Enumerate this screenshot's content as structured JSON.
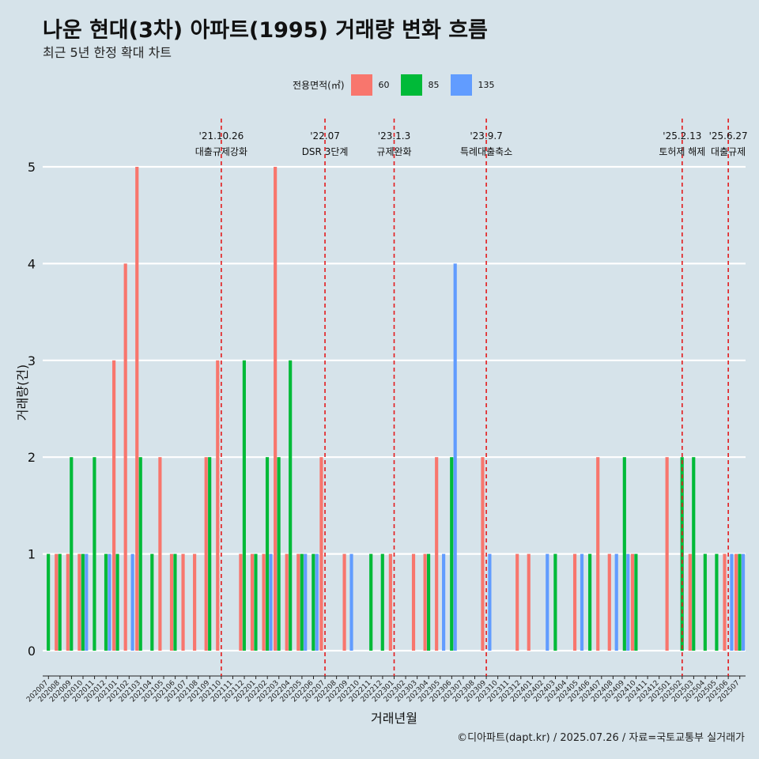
{
  "title": "나운 현대(3차) 아파트(1995) 거래량 변화 흐름",
  "subtitle": "최근 5년 한정 확대 차트",
  "caption": "©디아파트(dapt.kr) / 2025.07.26 / 자료=국토교통부 실거래가",
  "legend": {
    "title": "전용면적(㎡)",
    "items": [
      {
        "label": "60",
        "color": "#F8766D"
      },
      {
        "label": "85",
        "color": "#00BA38"
      },
      {
        "label": "135",
        "color": "#619CFF"
      }
    ]
  },
  "chart_data": {
    "type": "bar",
    "xlabel": "거래년월",
    "ylabel": "거래량(건)",
    "ylim": [
      0,
      5
    ],
    "yticks": [
      0,
      1,
      2,
      3,
      4,
      5
    ],
    "grid": true,
    "legend_position": "top",
    "categories": [
      "202007",
      "202008",
      "202009",
      "202010",
      "202011",
      "202012",
      "202101",
      "202102",
      "202103",
      "202104",
      "202105",
      "202106",
      "202107",
      "202108",
      "202109",
      "202110",
      "202111",
      "202112",
      "202201",
      "202202",
      "202203",
      "202204",
      "202205",
      "202206",
      "202207",
      "202208",
      "202209",
      "202210",
      "202211",
      "202212",
      "202301",
      "202302",
      "202303",
      "202304",
      "202305",
      "202306",
      "202307",
      "202308",
      "202309",
      "202310",
      "202311",
      "202312",
      "202401",
      "202402",
      "202403",
      "202404",
      "202405",
      "202406",
      "202407",
      "202408",
      "202409",
      "202410",
      "202411",
      "202412",
      "202501",
      "202502",
      "202503",
      "202504",
      "202505",
      "202506",
      "202507"
    ],
    "series": [
      {
        "name": "60",
        "color": "#F8766D",
        "values": [
          0,
          1,
          1,
          1,
          0,
          0,
          3,
          4,
          5,
          0,
          2,
          1,
          1,
          1,
          2,
          3,
          0,
          1,
          1,
          1,
          5,
          1,
          1,
          0,
          2,
          0,
          1,
          0,
          0,
          0,
          1,
          0,
          1,
          1,
          2,
          0,
          0,
          0,
          2,
          0,
          0,
          1,
          1,
          0,
          0,
          0,
          1,
          0,
          2,
          1,
          0,
          1,
          0,
          0,
          2,
          0,
          1,
          0,
          0,
          1,
          1
        ]
      },
      {
        "name": "85",
        "color": "#00BA38",
        "values": [
          1,
          1,
          2,
          1,
          2,
          1,
          1,
          0,
          2,
          1,
          0,
          1,
          0,
          0,
          2,
          0,
          0,
          3,
          1,
          2,
          2,
          3,
          1,
          1,
          0,
          0,
          0,
          0,
          1,
          1,
          0,
          0,
          0,
          1,
          0,
          2,
          0,
          0,
          0,
          0,
          0,
          0,
          0,
          0,
          1,
          0,
          0,
          1,
          0,
          0,
          2,
          1,
          0,
          0,
          0,
          2,
          2,
          1,
          1,
          0,
          1
        ]
      },
      {
        "name": "135",
        "color": "#619CFF",
        "values": [
          0,
          0,
          0,
          1,
          0,
          1,
          0,
          1,
          0,
          0,
          0,
          0,
          0,
          0,
          0,
          0,
          0,
          0,
          0,
          1,
          0,
          0,
          1,
          1,
          0,
          0,
          1,
          0,
          0,
          0,
          0,
          0,
          0,
          0,
          1,
          4,
          0,
          0,
          1,
          0,
          0,
          0,
          0,
          1,
          0,
          0,
          1,
          0,
          0,
          1,
          1,
          0,
          0,
          0,
          0,
          0,
          0,
          0,
          0,
          1,
          1
        ]
      }
    ],
    "annotations": [
      {
        "month": "202110",
        "date": "'21.10.26",
        "label": "대출규제강화"
      },
      {
        "month": "202207",
        "date": "'22.07",
        "label": "DSR 3단계"
      },
      {
        "month": "202301",
        "date": "'23.1.3",
        "label": "규제완화"
      },
      {
        "month": "202309",
        "date": "'23.9.7",
        "label": "특례대출축소"
      },
      {
        "month": "202502",
        "date": "'25.2.13",
        "label": "토허제 해제"
      },
      {
        "month": "202506",
        "date": "'25.6.27",
        "label": "대출규제"
      }
    ]
  }
}
